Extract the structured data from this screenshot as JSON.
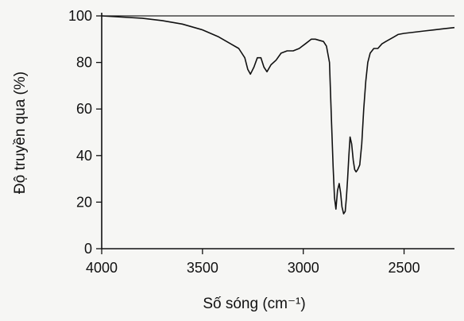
{
  "chart_data": {
    "type": "line",
    "xlabel": "Số sóng (cm⁻¹)",
    "ylabel": "Độ truyền qua (%)",
    "xlim": [
      4000,
      2250
    ],
    "ylim": [
      0,
      100
    ],
    "x_reversed": true,
    "xticks": [
      4000,
      3500,
      3000,
      2500
    ],
    "yticks": [
      0,
      20,
      40,
      60,
      80,
      100
    ],
    "grid": false,
    "series": [
      {
        "x": [
          4000,
          3900,
          3800,
          3700,
          3600,
          3500,
          3420,
          3360,
          3320,
          3290,
          3275,
          3262,
          3245,
          3228,
          3210,
          3195,
          3180,
          3160,
          3135,
          3110,
          3080,
          3050,
          3020,
          2990,
          2960,
          2940,
          2920,
          2900,
          2885,
          2870,
          2860,
          2852,
          2845,
          2838,
          2830,
          2822,
          2815,
          2808,
          2800,
          2792,
          2786,
          2780,
          2774,
          2768,
          2760,
          2752,
          2745,
          2738,
          2730,
          2720,
          2710,
          2700,
          2690,
          2680,
          2668,
          2650,
          2630,
          2610,
          2590,
          2570,
          2550,
          2530,
          2500,
          2450,
          2400,
          2350,
          2300,
          2250
        ],
        "y": [
          100,
          99.5,
          99,
          98,
          96.5,
          94,
          91,
          88,
          86,
          82,
          77,
          75,
          78,
          82,
          82,
          78,
          76,
          79,
          81,
          84,
          85,
          85,
          86,
          88,
          90,
          90,
          89.5,
          89,
          87,
          80,
          55,
          35,
          22,
          17,
          25,
          28,
          24,
          18,
          15,
          16,
          22,
          30,
          40,
          48,
          45,
          38,
          34,
          33,
          34,
          36,
          45,
          60,
          72,
          80,
          84,
          86,
          86,
          88,
          89,
          90,
          91,
          92,
          92.5,
          93,
          93.5,
          94,
          94.5,
          95
        ]
      }
    ],
    "reference_lines": [
      {
        "y": 100
      }
    ]
  }
}
